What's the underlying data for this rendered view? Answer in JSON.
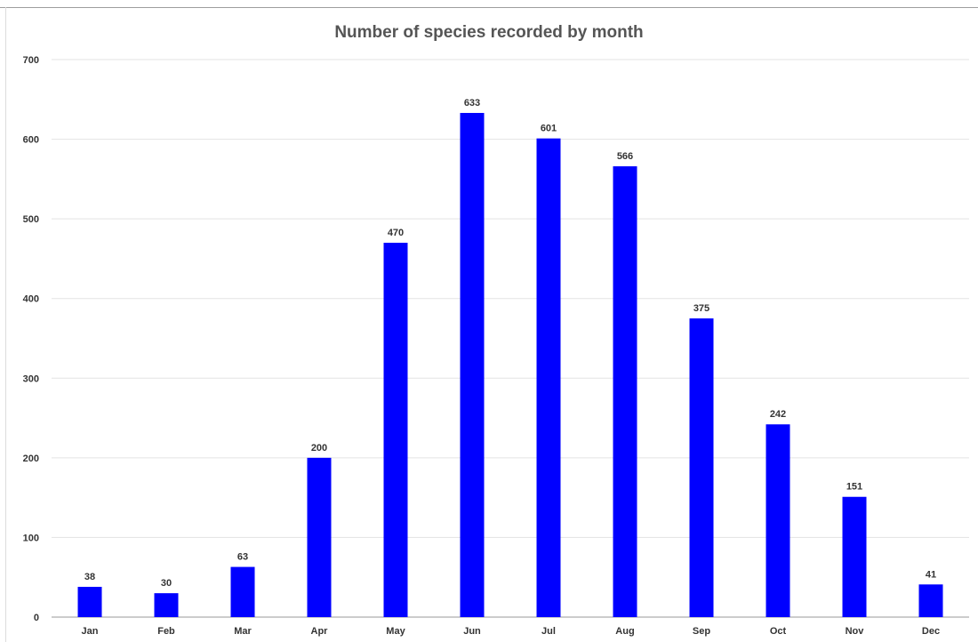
{
  "chart_data": {
    "type": "bar",
    "title": "Number of species recorded by month",
    "xlabel": "",
    "ylabel": "",
    "categories": [
      "Jan",
      "Feb",
      "Mar",
      "Apr",
      "May",
      "Jun",
      "Jul",
      "Aug",
      "Sep",
      "Oct",
      "Nov",
      "Dec"
    ],
    "series": [
      {
        "values": [
          38,
          30,
          63,
          200,
          470,
          633,
          601,
          566,
          375,
          242,
          151,
          41
        ],
        "color": "#0000ff"
      }
    ],
    "ylim": [
      0,
      700
    ],
    "yticks": [
      "0",
      "100",
      "200",
      "300",
      "400",
      "500",
      "600",
      "700"
    ],
    "data_labels": [
      "38",
      "30",
      "63",
      "200",
      "470",
      "633",
      "601",
      "566",
      "375",
      "242",
      "151",
      "41"
    ],
    "grid": true,
    "legend": "none"
  }
}
